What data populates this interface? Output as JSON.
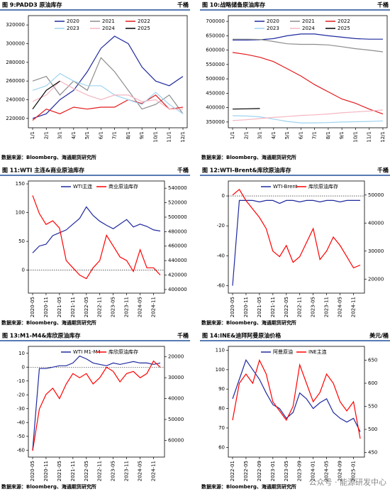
{
  "chart_data": [
    {
      "type": "line",
      "title": "图 9:PADD3 原油库存",
      "unit": "千桶",
      "source": "数据来源：Bloomberg、海通期货研究所",
      "categories": [
        "1/1",
        "2/1",
        "3/1",
        "4/1",
        "5/1",
        "6/1",
        "7/1",
        "8/1",
        "9/1",
        "10/1",
        "11/1",
        "12/1"
      ],
      "series": [
        {
          "name": "2020",
          "color": "#1f2a9e",
          "values": [
            220000,
            225000,
            240000,
            250000,
            270000,
            295000,
            308000,
            300000,
            275000,
            260000,
            255000,
            265000
          ]
        },
        {
          "name": "2021",
          "color": "#8c8c8c",
          "values": [
            260000,
            265000,
            245000,
            260000,
            250000,
            285000,
            270000,
            250000,
            230000,
            235000,
            245000,
            225000
          ]
        },
        {
          "name": "2022",
          "color": "#e31a1c",
          "values": [
            218000,
            230000,
            225000,
            232000,
            230000,
            232000,
            232000,
            240000,
            236000,
            245000,
            230000,
            232000
          ]
        },
        {
          "name": "2023",
          "color": "#9fd3f0",
          "values": [
            250000,
            255000,
            268000,
            260000,
            255000,
            255000,
            245000,
            240000,
            235000,
            248000,
            235000,
            225000
          ]
        },
        {
          "name": "2024",
          "color": "#f4b6c2",
          "values": [
            238000,
            245000,
            260000,
            252000,
            245000,
            240000,
            245000,
            245000,
            238000,
            240000,
            230000,
            230000
          ]
        },
        {
          "name": "2025",
          "color": "#000000",
          "values": [
            230000,
            250000,
            260000,
            null,
            null,
            null,
            null,
            null,
            null,
            null,
            null,
            null
          ]
        }
      ],
      "ylim": [
        210000,
        330000
      ],
      "yticks": [
        220000,
        240000,
        260000,
        280000,
        300000,
        320000
      ]
    },
    {
      "type": "line",
      "title": "图 10:战略储备原油库存",
      "unit": "千桶",
      "source": "数据来源：Bloomberg、海通期货研究所",
      "categories": [
        "1/1",
        "2/1",
        "3/1",
        "4/1",
        "5/1",
        "6/1",
        "7/1",
        "8/1",
        "9/1",
        "10/1",
        "11/1",
        "12/1"
      ],
      "series": [
        {
          "name": "2020",
          "color": "#1f2a9e",
          "values": [
            635000,
            635000,
            636000,
            640000,
            650000,
            656000,
            656000,
            650000,
            645000,
            640000,
            638000,
            638000
          ]
        },
        {
          "name": "2021",
          "color": "#8c8c8c",
          "values": [
            638000,
            638000,
            637000,
            630000,
            622000,
            620000,
            620000,
            618000,
            612000,
            605000,
            600000,
            594000
          ]
        },
        {
          "name": "2022",
          "color": "#e31a1c",
          "values": [
            592000,
            585000,
            575000,
            560000,
            535000,
            510000,
            480000,
            455000,
            430000,
            415000,
            395000,
            378000
          ]
        },
        {
          "name": "2023",
          "color": "#9fd3f0",
          "values": [
            372000,
            371000,
            368000,
            360000,
            352000,
            347000,
            347000,
            348000,
            350000,
            351000,
            352000,
            354000
          ]
        },
        {
          "name": "2024",
          "color": "#f4b6c2",
          "values": [
            355000,
            358000,
            362000,
            366000,
            369000,
            373000,
            375000,
            378000,
            382000,
            385000,
            388000,
            392000
          ]
        },
        {
          "name": "2025",
          "color": "#000000",
          "values": [
            395000,
            396000,
            397000,
            null,
            null,
            null,
            null,
            null,
            null,
            null,
            null,
            null
          ]
        }
      ],
      "ylim": [
        330000,
        720000
      ],
      "yticks": [
        350000,
        400000,
        450000,
        500000,
        550000,
        600000,
        650000,
        700000
      ]
    },
    {
      "type": "line",
      "title": "图 11:WTI 主连&商业原油库存",
      "unit": "千桶",
      "source": "数据来源：Bloomberg、海通期货研究所",
      "categories": [
        "2020-05",
        null,
        "2020-11",
        null,
        "2021-05",
        null,
        "2021-11",
        null,
        "2022-05",
        null,
        "2022-11",
        null,
        "2023-05",
        null,
        "2023-11",
        null,
        "2024-05",
        null,
        "2024-11",
        null
      ],
      "series": [
        {
          "name": "WTI主连",
          "color": "#1f2a9e",
          "values": [
            30,
            42,
            45,
            60,
            65,
            70,
            80,
            90,
            110,
            95,
            85,
            78,
            72,
            80,
            88,
            75,
            80,
            76,
            70,
            68
          ]
        },
        {
          "name": "商业原油库存",
          "color": "#ff0000",
          "axis": "y2",
          "values": [
            530000,
            505000,
            490000,
            495000,
            485000,
            440000,
            430000,
            420000,
            415000,
            430000,
            440000,
            475000,
            460000,
            445000,
            440000,
            425000,
            455000,
            430000,
            430000,
            420000
          ]
        }
      ],
      "ylim": [
        -40,
        155
      ],
      "yticks": [
        0,
        50,
        100,
        150
      ],
      "y2lim": [
        395000,
        550000
      ],
      "y2ticks": [
        400000,
        420000,
        440000,
        460000,
        480000,
        500000,
        520000,
        540000
      ]
    },
    {
      "type": "line",
      "title": "图 12:WTI-Brent&库欣原油库存",
      "unit": "千桶",
      "source": "数据来源：Bloomberg、海通期货研究所",
      "categories": [
        "2020-05",
        null,
        "2020-11",
        null,
        "2021-05",
        null,
        "2021-11",
        null,
        "2022-05",
        null,
        "2022-11",
        null,
        "2023-05",
        null,
        "2023-11",
        null,
        "2024-05",
        null,
        "2024-11",
        null
      ],
      "series": [
        {
          "name": "WTI-Brent",
          "color": "#1f2a9e",
          "values": [
            -60,
            -3,
            -3,
            -3,
            -4,
            -3,
            -3,
            -5,
            -3,
            -3,
            -4,
            -3,
            -3,
            -4,
            -3,
            -3,
            -4,
            -3,
            -3,
            -3
          ]
        },
        {
          "name": "库欣原油库存",
          "color": "#ff0000",
          "axis": "y2",
          "values": [
            50000,
            52000,
            48000,
            45000,
            42000,
            38000,
            30000,
            28000,
            32000,
            26000,
            28000,
            33000,
            38000,
            27000,
            30000,
            35000,
            32000,
            28000,
            24000,
            25000
          ]
        }
      ],
      "ylim": [
        -65,
        10
      ],
      "yticks": [
        -60,
        -40,
        -20,
        0
      ],
      "y2lim": [
        15000,
        55000
      ],
      "y2ticks": [
        20000,
        30000,
        40000,
        50000
      ]
    },
    {
      "type": "line",
      "title": "图 13:M1-M4&库欣原油库存",
      "unit": "千桶",
      "source": "数据来源：Bloomberg、海通期货研究所",
      "categories": [
        "2020-05",
        null,
        "2020-11",
        null,
        "2021-05",
        null,
        "2021-11",
        null,
        "2022-05",
        null,
        "2022-11",
        null,
        "2023-05",
        null,
        "2023-11",
        null,
        "2024-05",
        null,
        "2024-11",
        null
      ],
      "series": [
        {
          "name": "WTI M1-M4",
          "color": "#1f2a9e",
          "values": [
            -60,
            -1,
            -1,
            0,
            1,
            1,
            3,
            8,
            6,
            3,
            2,
            1,
            3,
            2,
            3,
            4,
            3,
            3,
            2,
            3
          ]
        },
        {
          "name": "库欣原油库存",
          "color": "#ff0000",
          "axis": "y2",
          "values": [
            65000,
            45000,
            38000,
            35000,
            40000,
            33000,
            28000,
            30000,
            28000,
            33000,
            30000,
            25000,
            27000,
            32000,
            28000,
            27000,
            30000,
            28000,
            22000,
            25000
          ]
        }
      ],
      "ylim": [
        -65,
        15
      ],
      "yticks": [
        -60,
        -50,
        -40,
        -30,
        -20,
        -10,
        0,
        10
      ],
      "y2lim": [
        15000,
        68000
      ],
      "y2ticks": [
        20000,
        30000,
        40000,
        50000,
        60000
      ],
      "y2_inverted": true
    },
    {
      "type": "line",
      "title": "图 14:INE&迪拜阿曼原油价格",
      "unit": "美元/桶",
      "source": "数据来源：Bloomberg、海通期货研究所",
      "categories": [
        "2022-01",
        null,
        "2022-05",
        null,
        "2022-09",
        null,
        "2023-01",
        null,
        "2023-05",
        null,
        "2023-09",
        null,
        "2024-01",
        null,
        "2024-05",
        null,
        "2024-09",
        null,
        "2025-01",
        null
      ],
      "series": [
        {
          "name": "阿曼原油",
          "color": "#1f2a9e",
          "values": [
            85,
            95,
            105,
            100,
            95,
            88,
            82,
            80,
            75,
            78,
            88,
            85,
            80,
            83,
            85,
            78,
            75,
            73,
            75,
            68
          ]
        },
        {
          "name": "INE主连",
          "color": "#ff0000",
          "axis": "y2",
          "values": [
            520,
            600,
            620,
            600,
            650,
            620,
            560,
            540,
            520,
            550,
            640,
            600,
            560,
            580,
            620,
            600,
            560,
            540,
            560,
            480
          ]
        }
      ],
      "ylim": [
        55,
        112
      ],
      "yticks": [
        60,
        70,
        80,
        90,
        100,
        110
      ],
      "y2lim": [
        440,
        680
      ],
      "y2ticks": [
        450,
        500,
        550,
        600,
        650
      ]
    }
  ],
  "watermark": "公众号 · 能源研发中心"
}
